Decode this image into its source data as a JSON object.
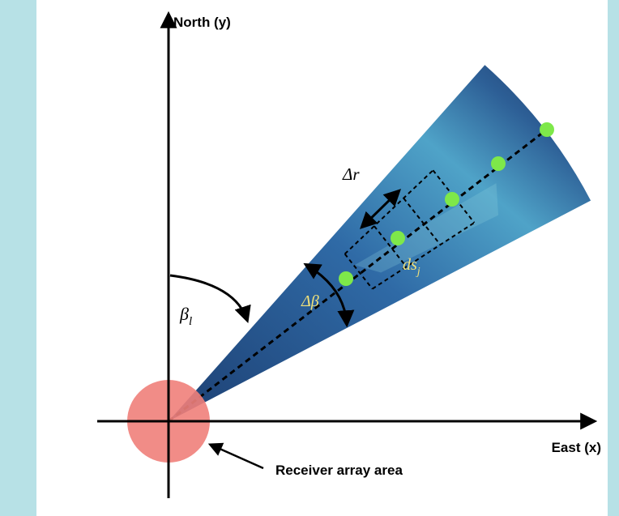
{
  "axes": {
    "north": "North (y)",
    "east": "East (x)"
  },
  "receiver_label": "Receiver array area",
  "labels": {
    "delta_r": "Δr",
    "delta_beta": "Δβ",
    "ds": {
      "base": "ds",
      "sub": "j"
    },
    "beta": {
      "base": "β",
      "sub": "l"
    }
  }
}
